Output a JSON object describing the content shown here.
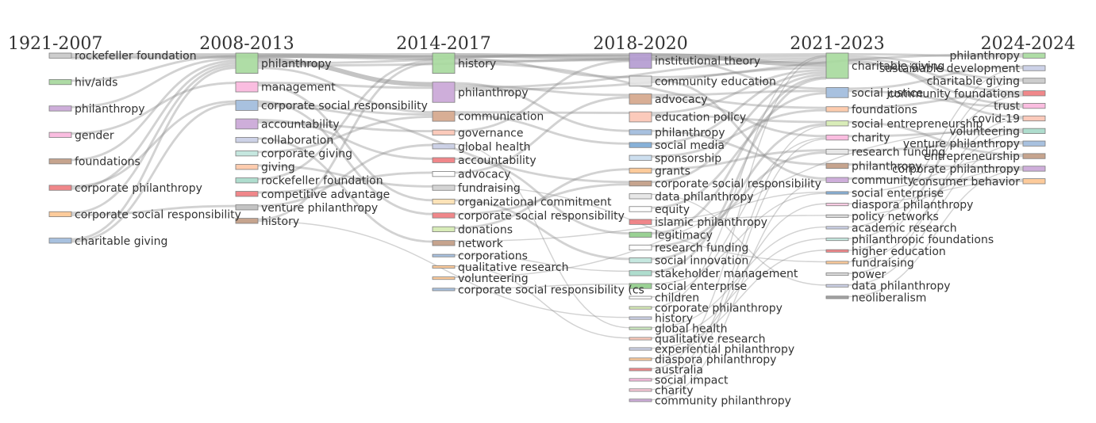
{
  "chart_data": {
    "type": "sankey",
    "periods": [
      "1921-2007",
      "2008-2013",
      "2014-2017",
      "2018-2020",
      "2021-2023",
      "2024-2024"
    ],
    "columns": [
      {
        "nodes": [
          {
            "label": "rockefeller foundation",
            "color": "#c8c8c8",
            "weight": 1
          },
          {
            "label": "hiv/aids",
            "color": "#a5d79b",
            "weight": 1
          },
          {
            "label": "philanthropy",
            "color": "#c9a5d6",
            "weight": 1
          },
          {
            "label": "gender",
            "color": "#f9b6dd",
            "weight": 1
          },
          {
            "label": "foundations",
            "color": "#c09a82",
            "weight": 1
          },
          {
            "label": "corporate philanthropy",
            "color": "#ee7a7d",
            "weight": 1
          },
          {
            "label": "corporate social responsibility",
            "color": "#fdc590",
            "weight": 1
          },
          {
            "label": "charitable giving",
            "color": "#9ebadc",
            "weight": 1
          }
        ]
      },
      {
        "nodes": [
          {
            "label": "philanthropy",
            "color": "#a6d99c",
            "weight": 4
          },
          {
            "label": "management",
            "color": "#f9b6dd",
            "weight": 2
          },
          {
            "label": "corporate social responsibility",
            "color": "#9ebadc",
            "weight": 2
          },
          {
            "label": "accountability",
            "color": "#c9a5d6",
            "weight": 2
          },
          {
            "label": "collaboration",
            "color": "#c8cde4",
            "weight": 1
          },
          {
            "label": "corporate giving",
            "color": "#bfe4dc",
            "weight": 1
          },
          {
            "label": "giving",
            "color": "#fdc6a5",
            "weight": 1
          },
          {
            "label": "rockefeller foundation",
            "color": "#a6d9c9",
            "weight": 1
          },
          {
            "label": "competitive advantage",
            "color": "#ee7a7d",
            "weight": 1
          },
          {
            "label": "venture philanthropy",
            "color": "#bdbdbd",
            "weight": 1
          },
          {
            "label": "history",
            "color": "#c09a82",
            "weight": 1
          }
        ]
      },
      {
        "nodes": [
          {
            "label": "history",
            "color": "#a6d99c",
            "weight": 4
          },
          {
            "label": "philanthropy",
            "color": "#c9a5d6",
            "weight": 4
          },
          {
            "label": "communication",
            "color": "#d4a58a",
            "weight": 2
          },
          {
            "label": "governance",
            "color": "#fbc4b4",
            "weight": 1
          },
          {
            "label": "global health",
            "color": "#c8cde4",
            "weight": 1
          },
          {
            "label": "accountability",
            "color": "#ee7a7d",
            "weight": 1
          },
          {
            "label": "advocacy",
            "color": "#ffffff",
            "weight": 1
          },
          {
            "label": "fundraising",
            "color": "#cfcfcf",
            "weight": 1
          },
          {
            "label": "organizational commitment",
            "color": "#fde0b0",
            "weight": 1
          },
          {
            "label": "corporate social responsibility",
            "color": "#ee7a7d",
            "weight": 1
          },
          {
            "label": "donations",
            "color": "#d4eab0",
            "weight": 1
          },
          {
            "label": "network",
            "color": "#c09a82",
            "weight": 1
          },
          {
            "label": "corporations",
            "color": "#9ebadc",
            "weight": 0.5
          },
          {
            "label": "qualitative research",
            "color": "#fdc590",
            "weight": 0.5
          },
          {
            "label": "volunteering",
            "color": "#fdc590",
            "weight": 0.5
          },
          {
            "label": "corporate social responsibility (cs",
            "color": "#9ebadc",
            "weight": 0.5
          }
        ]
      },
      {
        "nodes": [
          {
            "label": "institutional theory",
            "color": "#b39ad0",
            "weight": 3
          },
          {
            "label": "community education",
            "color": "#e4e4e4",
            "weight": 2
          },
          {
            "label": "advocacy",
            "color": "#d4a58a",
            "weight": 2
          },
          {
            "label": "education policy",
            "color": "#fbc4b4",
            "weight": 2
          },
          {
            "label": "philanthropy",
            "color": "#9ebadc",
            "weight": 1
          },
          {
            "label": "social media",
            "color": "#7aa8d4",
            "weight": 1
          },
          {
            "label": "sponsorship",
            "color": "#c8dced",
            "weight": 1
          },
          {
            "label": "grants",
            "color": "#fdc590",
            "weight": 1
          },
          {
            "label": "corporate social responsibility",
            "color": "#c09a82",
            "weight": 1
          },
          {
            "label": "data philanthropy",
            "color": "#e4e4e4",
            "weight": 1
          },
          {
            "label": "equity",
            "color": "#ffffff",
            "weight": 1
          },
          {
            "label": "islamic philanthropy",
            "color": "#ee7a7d",
            "weight": 1
          },
          {
            "label": "legitimacy",
            "color": "#8fcc88",
            "weight": 1
          },
          {
            "label": "research funding",
            "color": "#ffffff",
            "weight": 1
          },
          {
            "label": "social innovation",
            "color": "#bfe4dc",
            "weight": 1
          },
          {
            "label": "stakeholder management",
            "color": "#a6d9c9",
            "weight": 1
          },
          {
            "label": "social enterprise",
            "color": "#8fcc88",
            "weight": 1
          },
          {
            "label": "children",
            "color": "#ffffff",
            "weight": 0.5
          },
          {
            "label": "corporate philanthropy",
            "color": "#d4eab0",
            "weight": 0.5
          },
          {
            "label": "history",
            "color": "#c8cde4",
            "weight": 0.5
          },
          {
            "label": "global health",
            "color": "#c7e5b8",
            "weight": 0.5
          },
          {
            "label": "qualitative research",
            "color": "#fbc4b4",
            "weight": 0.5
          },
          {
            "label": "experiential philanthropy",
            "color": "#c8cde4",
            "weight": 0.5
          },
          {
            "label": "diaspora philanthropy",
            "color": "#fdc590",
            "weight": 0.5
          },
          {
            "label": "australia",
            "color": "#ee7a7d",
            "weight": 0.5
          },
          {
            "label": "social impact",
            "color": "#f9b6dd",
            "weight": 0.5
          },
          {
            "label": "charity",
            "color": "#fbc4d4",
            "weight": 0.5
          },
          {
            "label": "community philanthropy",
            "color": "#c9a5d6",
            "weight": 0.5
          }
        ]
      },
      {
        "nodes": [
          {
            "label": "charitable giving",
            "color": "#a6d99c",
            "weight": 5
          },
          {
            "label": "social justice",
            "color": "#9ebadc",
            "weight": 2
          },
          {
            "label": "foundations",
            "color": "#fdc6a5",
            "weight": 1
          },
          {
            "label": "social entrepreneurship",
            "color": "#d4eab0",
            "weight": 1
          },
          {
            "label": "charity",
            "color": "#f9b6dd",
            "weight": 1
          },
          {
            "label": "research funding",
            "color": "#e4e4e4",
            "weight": 1
          },
          {
            "label": "philanthropy",
            "color": "#c09a82",
            "weight": 1
          },
          {
            "label": "community",
            "color": "#c9a5d6",
            "weight": 1
          },
          {
            "label": "social enterprise",
            "color": "#7aa8d4",
            "weight": 0.5
          },
          {
            "label": "diaspora philanthropy",
            "color": "#f9c6e0",
            "weight": 0.5
          },
          {
            "label": "policy networks",
            "color": "#d8d8d8",
            "weight": 0.5
          },
          {
            "label": "academic research",
            "color": "#c8cde4",
            "weight": 0.5
          },
          {
            "label": "philanthropic foundations",
            "color": "#bfe4dc",
            "weight": 0.5
          },
          {
            "label": "higher education",
            "color": "#ee7a7d",
            "weight": 0.5
          },
          {
            "label": "fundraising",
            "color": "#fdc590",
            "weight": 0.5
          },
          {
            "label": "power",
            "color": "#d8d8d8",
            "weight": 0.5
          },
          {
            "label": "data philanthropy",
            "color": "#c8cde4",
            "weight": 0.5
          },
          {
            "label": "neoliberalism",
            "color": "#9a9a9a",
            "weight": 0.5
          }
        ]
      },
      {
        "nodes": [
          {
            "label": "philanthropy",
            "color": "#a6d99c",
            "weight": 1
          },
          {
            "label": "sustainable development",
            "color": "#c8cde4",
            "weight": 1
          },
          {
            "label": "charitable giving",
            "color": "#c8c8c8",
            "weight": 1
          },
          {
            "label": "community foundations",
            "color": "#ee7a7d",
            "weight": 1
          },
          {
            "label": "trust",
            "color": "#f9b6dd",
            "weight": 1
          },
          {
            "label": "covid-19",
            "color": "#fbc4b4",
            "weight": 1
          },
          {
            "label": "volunteering",
            "color": "#a6d9c9",
            "weight": 1
          },
          {
            "label": "venture philanthropy",
            "color": "#9ebadc",
            "weight": 1
          },
          {
            "label": "entrepreneurship",
            "color": "#c09a82",
            "weight": 1
          },
          {
            "label": "corporate philanthropy",
            "color": "#c9a5d6",
            "weight": 1
          },
          {
            "label": "consumer behavior",
            "color": "#fdc590",
            "weight": 1
          }
        ]
      }
    ],
    "flows": [
      [
        0,
        0,
        1,
        0,
        1
      ],
      [
        0,
        0,
        2,
        0,
        1
      ],
      [
        0,
        0,
        4,
        0,
        1
      ],
      [
        0,
        1,
        1,
        0,
        1
      ],
      [
        0,
        2,
        1,
        0,
        1
      ],
      [
        0,
        3,
        1,
        1,
        1
      ],
      [
        0,
        4,
        1,
        0,
        1
      ],
      [
        0,
        5,
        1,
        2,
        1
      ],
      [
        0,
        5,
        1,
        0,
        1
      ],
      [
        0,
        6,
        1,
        0,
        1
      ],
      [
        0,
        6,
        1,
        9,
        1
      ],
      [
        0,
        7,
        1,
        0,
        1
      ],
      [
        0,
        7,
        1,
        2,
        1
      ],
      [
        1,
        0,
        2,
        0,
        2
      ],
      [
        1,
        0,
        2,
        1,
        2
      ],
      [
        1,
        0,
        3,
        0,
        1
      ],
      [
        1,
        0,
        4,
        0,
        1
      ],
      [
        1,
        0,
        2,
        2,
        1
      ],
      [
        1,
        1,
        2,
        1,
        1
      ],
      [
        1,
        1,
        2,
        8,
        1
      ],
      [
        1,
        2,
        2,
        9,
        1
      ],
      [
        1,
        2,
        2,
        2,
        1
      ],
      [
        1,
        2,
        3,
        8,
        1
      ],
      [
        1,
        3,
        2,
        5,
        1
      ],
      [
        1,
        3,
        2,
        3,
        1
      ],
      [
        1,
        4,
        2,
        11,
        1
      ],
      [
        1,
        5,
        2,
        2,
        1
      ],
      [
        1,
        6,
        2,
        7,
        1
      ],
      [
        1,
        7,
        2,
        0,
        1
      ],
      [
        1,
        8,
        2,
        6,
        1
      ],
      [
        1,
        9,
        2,
        4,
        1
      ],
      [
        1,
        10,
        2,
        0,
        1
      ],
      [
        1,
        10,
        3,
        19,
        0.5
      ],
      [
        2,
        0,
        3,
        0,
        2
      ],
      [
        2,
        0,
        3,
        1,
        1
      ],
      [
        2,
        0,
        4,
        0,
        1
      ],
      [
        2,
        0,
        4,
        2,
        1
      ],
      [
        2,
        1,
        3,
        4,
        1
      ],
      [
        2,
        1,
        3,
        2,
        1
      ],
      [
        2,
        1,
        4,
        0,
        1
      ],
      [
        2,
        1,
        5,
        0,
        1
      ],
      [
        2,
        2,
        3,
        3,
        1
      ],
      [
        2,
        2,
        3,
        5,
        1
      ],
      [
        2,
        3,
        3,
        0,
        1
      ],
      [
        2,
        4,
        3,
        20,
        0.5
      ],
      [
        2,
        5,
        3,
        12,
        1
      ],
      [
        2,
        6,
        3,
        2,
        1
      ],
      [
        2,
        7,
        4,
        14,
        0.5
      ],
      [
        2,
        8,
        3,
        14,
        1
      ],
      [
        2,
        9,
        3,
        8,
        1
      ],
      [
        2,
        10,
        3,
        7,
        1
      ],
      [
        2,
        11,
        4,
        10,
        0.5
      ],
      [
        2,
        12,
        3,
        15,
        0.5
      ],
      [
        2,
        13,
        3,
        21,
        0.5
      ],
      [
        2,
        14,
        5,
        6,
        0.5
      ],
      [
        2,
        15,
        3,
        16,
        0.5
      ],
      [
        3,
        0,
        4,
        0,
        2
      ],
      [
        3,
        0,
        4,
        1,
        1
      ],
      [
        3,
        1,
        4,
        0,
        1
      ],
      [
        3,
        1,
        4,
        7,
        1
      ],
      [
        3,
        2,
        4,
        1,
        1
      ],
      [
        3,
        2,
        4,
        4,
        1
      ],
      [
        3,
        3,
        4,
        0,
        1
      ],
      [
        3,
        3,
        4,
        3,
        1
      ],
      [
        3,
        4,
        4,
        6,
        1
      ],
      [
        3,
        5,
        4,
        0,
        1
      ],
      [
        3,
        6,
        4,
        2,
        1
      ],
      [
        3,
        7,
        4,
        5,
        1
      ],
      [
        3,
        8,
        4,
        0,
        1
      ],
      [
        3,
        9,
        4,
        16,
        0.5
      ],
      [
        3,
        10,
        4,
        1,
        1
      ],
      [
        3,
        11,
        4,
        8,
        0.5
      ],
      [
        3,
        12,
        4,
        0,
        1
      ],
      [
        3,
        13,
        4,
        5,
        1
      ],
      [
        3,
        14,
        4,
        3,
        1
      ],
      [
        3,
        15,
        4,
        0,
        1
      ],
      [
        3,
        16,
        4,
        8,
        0.5
      ],
      [
        3,
        17,
        4,
        4,
        0.5
      ],
      [
        3,
        18,
        4,
        0,
        0.5
      ],
      [
        3,
        20,
        4,
        11,
        0.5
      ],
      [
        3,
        21,
        4,
        12,
        0.5
      ],
      [
        3,
        22,
        4,
        13,
        0.5
      ],
      [
        3,
        23,
        4,
        9,
        0.5
      ],
      [
        3,
        24,
        4,
        0,
        0.5
      ],
      [
        3,
        25,
        4,
        3,
        0.5
      ],
      [
        3,
        26,
        4,
        4,
        0.5
      ],
      [
        3,
        27,
        4,
        7,
        0.5
      ],
      [
        4,
        0,
        5,
        0,
        1
      ],
      [
        4,
        0,
        5,
        2,
        1
      ],
      [
        4,
        0,
        5,
        3,
        1
      ],
      [
        4,
        0,
        5,
        5,
        1
      ],
      [
        4,
        0,
        5,
        4,
        1
      ],
      [
        4,
        1,
        5,
        1,
        1
      ],
      [
        4,
        1,
        5,
        4,
        1
      ],
      [
        4,
        2,
        5,
        3,
        1
      ],
      [
        4,
        3,
        5,
        8,
        1
      ],
      [
        4,
        4,
        5,
        6,
        1
      ],
      [
        4,
        5,
        5,
        7,
        1
      ],
      [
        4,
        6,
        5,
        9,
        1
      ],
      [
        4,
        7,
        5,
        10,
        1
      ],
      [
        4,
        8,
        5,
        8,
        0.5
      ],
      [
        4,
        9,
        5,
        10,
        0.5
      ],
      [
        4,
        10,
        5,
        9,
        0.5
      ],
      [
        4,
        11,
        5,
        1,
        0.5
      ],
      [
        4,
        12,
        5,
        3,
        0.5
      ],
      [
        4,
        13,
        5,
        2,
        0.5
      ],
      [
        4,
        14,
        5,
        6,
        0.5
      ],
      [
        4,
        15,
        5,
        5,
        0.5
      ],
      [
        4,
        16,
        5,
        7,
        0.5
      ],
      [
        4,
        17,
        5,
        9,
        0.5
      ]
    ],
    "title": "",
    "xlabel": "",
    "ylabel": "",
    "grid": false,
    "legend": "none"
  }
}
